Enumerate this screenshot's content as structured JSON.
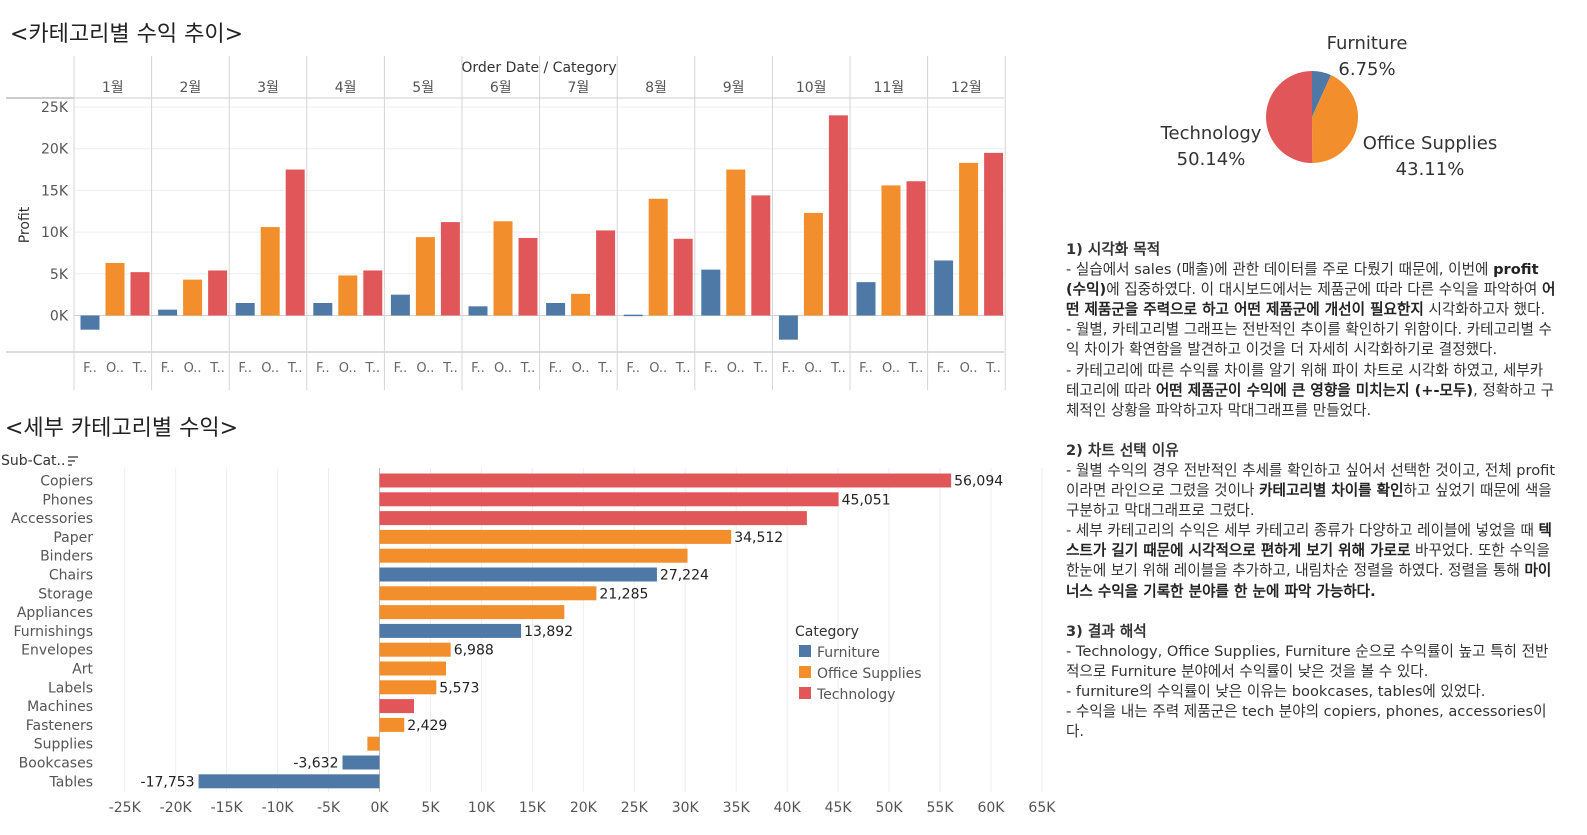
{
  "titles": {
    "monthly": "<카테고리별 수익 추이>",
    "subcat": "<세부 카테고리별 수익>"
  },
  "colors": {
    "Furniture": "#4e79a7",
    "Office Supplies": "#f28e2b",
    "Technology": "#e15759"
  },
  "chart_data": [
    {
      "type": "bar",
      "title": "<카테고리별 수익 추이>",
      "header": "Order Date / Category",
      "ylabel": "Profit",
      "ylim": [
        -4000,
        25000
      ],
      "yticks": [
        "25K",
        "20K",
        "15K",
        "10K",
        "5K",
        "0K"
      ],
      "months": [
        "1월",
        "2월",
        "3월",
        "4월",
        "5월",
        "6월",
        "7월",
        "8월",
        "9월",
        "10월",
        "11월",
        "12월"
      ],
      "cat_abbr": [
        "F..",
        "O..",
        "T.."
      ],
      "series": [
        {
          "name": "Furniture",
          "values": [
            -1700,
            700,
            1500,
            1500,
            2500,
            1100,
            1500,
            100,
            5500,
            -2900,
            4000,
            6600
          ]
        },
        {
          "name": "Office Supplies",
          "values": [
            6300,
            4300,
            10600,
            4800,
            9400,
            11300,
            2600,
            14000,
            17500,
            12300,
            15600,
            18300
          ]
        },
        {
          "name": "Technology",
          "values": [
            5200,
            5400,
            17500,
            5400,
            11200,
            9300,
            10200,
            9200,
            14400,
            24000,
            16100,
            19500
          ]
        }
      ]
    },
    {
      "type": "bar",
      "title": "<세부 카테고리별 수익>",
      "orientation": "horizontal",
      "row_header": "Sub-Cat..",
      "xlim": [
        -25000,
        65000
      ],
      "xticks": [
        "-25K",
        "-20K",
        "-15K",
        "-10K",
        "-5K",
        "0K",
        "5K",
        "10K",
        "15K",
        "20K",
        "25K",
        "30K",
        "35K",
        "40K",
        "45K",
        "50K",
        "55K",
        "60K",
        "65K"
      ],
      "categories": [
        "Copiers",
        "Phones",
        "Accessories",
        "Paper",
        "Binders",
        "Chairs",
        "Storage",
        "Appliances",
        "Furnishings",
        "Envelopes",
        "Art",
        "Labels",
        "Machines",
        "Fasteners",
        "Supplies",
        "Bookcases",
        "Tables"
      ],
      "values": [
        56094,
        45051,
        41937,
        34512,
        30228,
        27224,
        21285,
        18138,
        13892,
        6988,
        6528,
        5573,
        3385,
        2429,
        -1189,
        -3632,
        -17753
      ],
      "groups": [
        "Technology",
        "Technology",
        "Technology",
        "Office Supplies",
        "Office Supplies",
        "Furniture",
        "Office Supplies",
        "Office Supplies",
        "Furniture",
        "Office Supplies",
        "Office Supplies",
        "Office Supplies",
        "Technology",
        "Office Supplies",
        "Office Supplies",
        "Furniture",
        "Furniture"
      ],
      "data_labels": [
        "56,094",
        "45,051",
        "",
        "34,512",
        "",
        "27,224",
        "21,285",
        "",
        "13,892",
        "6,988",
        "",
        "5,573",
        "",
        "2,429",
        "",
        "-3,632",
        "-17,753"
      ],
      "legend": {
        "title": "Category",
        "items": [
          "Furniture",
          "Office Supplies",
          "Technology"
        ]
      }
    },
    {
      "type": "pie",
      "slices": [
        {
          "name": "Furniture",
          "value": 6.75,
          "label": "6.75%"
        },
        {
          "name": "Office Supplies",
          "value": 43.11,
          "label": "43.11%"
        },
        {
          "name": "Technology",
          "value": 50.14,
          "label": "50.14%"
        }
      ]
    }
  ],
  "notes": [
    {
      "kind": "h",
      "text": "1) 시각화 목적"
    },
    {
      "kind": "p",
      "segs": [
        {
          "t": "- 실습에서 sales (매출)에 관한 데이터를 주로 다뤘기 때문에, 이번에 "
        },
        {
          "t": "profit (수익)",
          "b": true
        },
        {
          "t": "에 집중하였다. 이 대시보드에서는 제품군에 따라 다른 수익을 파악하여 "
        },
        {
          "t": "어떤 제품군을 주력으로 하고 어떤 제품군에 개선이 필요한지",
          "b": true
        },
        {
          "t": " 시각화하고자 했다."
        }
      ]
    },
    {
      "kind": "p",
      "segs": [
        {
          "t": "- 월별, 카테고리별 그래프는 전반적인 추이를 확인하기 위함이다. 카테고리별 수익 차이가 확연함을 발견하고 이것을 더 자세히 시각화하기로 결정했다."
        }
      ]
    },
    {
      "kind": "p",
      "segs": [
        {
          "t": "- 카테고리에 따른 수익률 차이를 알기 위해 파이 차트로 시각화 하였고, 세부카테고리에 따라 "
        },
        {
          "t": "어떤 제품군이 수익에 큰 영향을 미치는지 (+-모두)",
          "b": true
        },
        {
          "t": ", 정확하고 구체적인 상황을 파악하고자 막대그래프를 만들었다."
        }
      ]
    },
    {
      "kind": "gap"
    },
    {
      "kind": "h",
      "text": "2) 차트 선택 이유"
    },
    {
      "kind": "p",
      "segs": [
        {
          "t": "- 월별 수익의 경우 전반적인 추세를 확인하고 싶어서 선택한 것이고, 전체 profit이라면 라인으로 그렸을 것이나 "
        },
        {
          "t": "카테고리별 차이를 확인",
          "b": true
        },
        {
          "t": "하고 싶었기 때문에 색을 구분하고 막대그래프로 그렸다."
        }
      ]
    },
    {
      "kind": "p",
      "segs": [
        {
          "t": "- 세부 카테고리의 수익은 세부 카테고리 종류가 다양하고 레이블에 넣었을 때 "
        },
        {
          "t": "텍스트가 길기 때문에 시각적으로 편하게 보기 위해 가로로",
          "b": true
        },
        {
          "t": " 바꾸었다. 또한 수익을 한눈에 보기 위해 레이블을 추가하고, 내림차순 정렬을 하였다. 정렬을 통해 "
        },
        {
          "t": "마이너스 수익을 기록한 분야를 한 눈에 파악 가능하다.",
          "b": true
        }
      ]
    },
    {
      "kind": "gap"
    },
    {
      "kind": "h",
      "text": "3) 결과 해석"
    },
    {
      "kind": "p",
      "segs": [
        {
          "t": "- Technology, Office Supplies, Furniture 순으로 수익률이 높고 특히 전반적으로 Furniture 분야에서 수익률이 낮은 것을 볼 수 있다."
        }
      ]
    },
    {
      "kind": "p",
      "segs": [
        {
          "t": "- furniture의 수익률이 낮은 이유는 bookcases, tables에 있었다."
        }
      ]
    },
    {
      "kind": "p",
      "segs": [
        {
          "t": "- 수익을 내는 주력 제품군은 tech 분야의 copiers, phones, accessories이다."
        }
      ]
    }
  ]
}
